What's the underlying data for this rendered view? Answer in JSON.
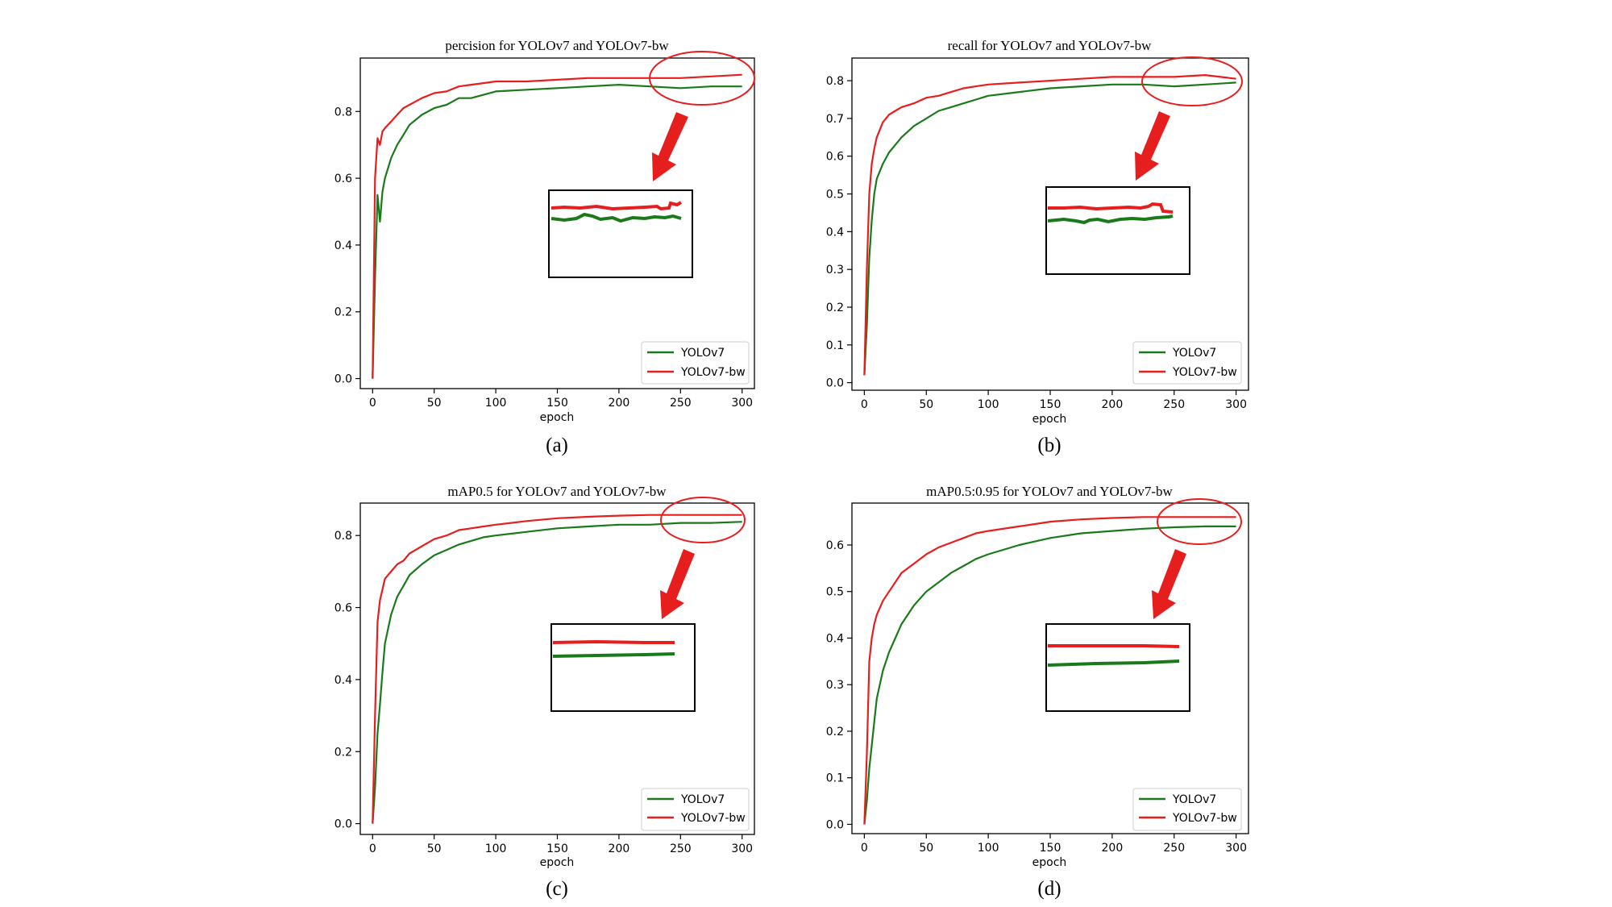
{
  "chart_data": [
    {
      "type": "line",
      "title": "percision for YOLOv7 and YOLOv7-bw",
      "caption": "(a)",
      "xlabel": "epoch",
      "ylabel": "",
      "xlim": [
        -10,
        310
      ],
      "ylim": [
        -0.03,
        0.96
      ],
      "xticks": [
        0,
        50,
        100,
        150,
        200,
        250,
        300
      ],
      "yticks": [
        0.0,
        0.2,
        0.4,
        0.6,
        0.8
      ],
      "xtick_labels": [
        "0",
        "50",
        "100",
        "150",
        "200",
        "250",
        "300"
      ],
      "ytick_labels": [
        "0.0",
        "0.2",
        "0.4",
        "0.6",
        "0.8"
      ],
      "grid": false,
      "legend_position": "lower right",
      "inset": true,
      "series": [
        {
          "name": "YOLOv7",
          "color": "#1a7a1a",
          "x": [
            0,
            2,
            4,
            6,
            8,
            10,
            15,
            20,
            25,
            30,
            40,
            50,
            60,
            70,
            80,
            90,
            100,
            125,
            150,
            175,
            200,
            225,
            250,
            275,
            300
          ],
          "y": [
            0.0,
            0.3,
            0.55,
            0.47,
            0.56,
            0.6,
            0.66,
            0.7,
            0.73,
            0.76,
            0.79,
            0.81,
            0.82,
            0.84,
            0.84,
            0.85,
            0.86,
            0.865,
            0.87,
            0.875,
            0.88,
            0.875,
            0.87,
            0.875,
            0.875
          ]
        },
        {
          "name": "YOLOv7-bw",
          "color": "#e61e1e",
          "x": [
            0,
            2,
            4,
            6,
            8,
            10,
            15,
            20,
            25,
            30,
            40,
            50,
            60,
            70,
            80,
            90,
            100,
            125,
            150,
            175,
            200,
            225,
            250,
            275,
            300
          ],
          "y": [
            0.0,
            0.6,
            0.72,
            0.7,
            0.74,
            0.75,
            0.77,
            0.79,
            0.81,
            0.82,
            0.84,
            0.855,
            0.86,
            0.875,
            0.88,
            0.885,
            0.89,
            0.89,
            0.895,
            0.9,
            0.9,
            0.9,
            0.9,
            0.905,
            0.91
          ]
        }
      ]
    },
    {
      "type": "line",
      "title": "recall for YOLOv7 and YOLOv7-bw",
      "caption": "(b)",
      "xlabel": "epoch",
      "ylabel": "",
      "xlim": [
        -10,
        310
      ],
      "ylim": [
        -0.02,
        0.86
      ],
      "xticks": [
        0,
        50,
        100,
        150,
        200,
        250,
        300
      ],
      "yticks": [
        0.0,
        0.1,
        0.2,
        0.3,
        0.4,
        0.5,
        0.6,
        0.7,
        0.8
      ],
      "xtick_labels": [
        "0",
        "50",
        "100",
        "150",
        "200",
        "250",
        "300"
      ],
      "ytick_labels": [
        "0.0",
        "0.1",
        "0.2",
        "0.3",
        "0.4",
        "0.5",
        "0.6",
        "0.7",
        "0.8"
      ],
      "grid": false,
      "legend_position": "lower right",
      "inset": true,
      "series": [
        {
          "name": "YOLOv7",
          "color": "#1a7a1a",
          "x": [
            0,
            2,
            4,
            6,
            8,
            10,
            15,
            20,
            25,
            30,
            40,
            50,
            60,
            70,
            80,
            90,
            100,
            125,
            150,
            175,
            200,
            225,
            250,
            275,
            300
          ],
          "y": [
            0.02,
            0.15,
            0.33,
            0.43,
            0.5,
            0.54,
            0.58,
            0.61,
            0.63,
            0.65,
            0.68,
            0.7,
            0.72,
            0.73,
            0.74,
            0.75,
            0.76,
            0.77,
            0.78,
            0.785,
            0.79,
            0.79,
            0.785,
            0.79,
            0.795
          ]
        },
        {
          "name": "YOLOv7-bw",
          "color": "#e61e1e",
          "x": [
            0,
            2,
            4,
            6,
            8,
            10,
            15,
            20,
            25,
            30,
            40,
            50,
            60,
            70,
            80,
            90,
            100,
            125,
            150,
            175,
            200,
            225,
            250,
            275,
            300
          ],
          "y": [
            0.02,
            0.3,
            0.5,
            0.58,
            0.62,
            0.65,
            0.69,
            0.71,
            0.72,
            0.73,
            0.74,
            0.755,
            0.76,
            0.77,
            0.78,
            0.785,
            0.79,
            0.795,
            0.8,
            0.805,
            0.81,
            0.81,
            0.81,
            0.815,
            0.805
          ]
        }
      ]
    },
    {
      "type": "line",
      "title": "mAP0.5 for YOLOv7 and YOLOv7-bw",
      "caption": "(c)",
      "xlabel": "epoch",
      "ylabel": "",
      "xlim": [
        -10,
        310
      ],
      "ylim": [
        -0.03,
        0.89
      ],
      "xticks": [
        0,
        50,
        100,
        150,
        200,
        250,
        300
      ],
      "yticks": [
        0.0,
        0.2,
        0.4,
        0.6,
        0.8
      ],
      "xtick_labels": [
        "0",
        "50",
        "100",
        "150",
        "200",
        "250",
        "300"
      ],
      "ytick_labels": [
        "0.0",
        "0.2",
        "0.4",
        "0.6",
        "0.8"
      ],
      "grid": false,
      "legend_position": "lower right",
      "inset": true,
      "series": [
        {
          "name": "YOLOv7",
          "color": "#1a7a1a",
          "x": [
            0,
            2,
            4,
            6,
            8,
            10,
            15,
            20,
            25,
            30,
            40,
            50,
            60,
            70,
            80,
            90,
            100,
            125,
            150,
            175,
            200,
            225,
            250,
            275,
            300
          ],
          "y": [
            0.0,
            0.1,
            0.25,
            0.33,
            0.42,
            0.5,
            0.58,
            0.63,
            0.66,
            0.69,
            0.72,
            0.745,
            0.76,
            0.775,
            0.785,
            0.795,
            0.8,
            0.81,
            0.82,
            0.825,
            0.83,
            0.83,
            0.835,
            0.835,
            0.838
          ]
        },
        {
          "name": "YOLOv7-bw",
          "color": "#e61e1e",
          "x": [
            0,
            2,
            4,
            6,
            8,
            10,
            15,
            20,
            25,
            30,
            40,
            50,
            60,
            70,
            80,
            90,
            100,
            125,
            150,
            175,
            200,
            225,
            250,
            275,
            300
          ],
          "y": [
            0.0,
            0.3,
            0.56,
            0.62,
            0.65,
            0.68,
            0.7,
            0.72,
            0.73,
            0.75,
            0.77,
            0.79,
            0.8,
            0.815,
            0.82,
            0.825,
            0.83,
            0.84,
            0.848,
            0.852,
            0.855,
            0.857,
            0.857,
            0.857,
            0.857
          ]
        }
      ]
    },
    {
      "type": "line",
      "title": "mAP0.5:0.95 for YOLOv7 and YOLOv7-bw",
      "caption": "(d)",
      "xlabel": "epoch",
      "ylabel": "",
      "xlim": [
        -10,
        310
      ],
      "ylim": [
        -0.02,
        0.69
      ],
      "xticks": [
        0,
        50,
        100,
        150,
        200,
        250,
        300
      ],
      "yticks": [
        0.0,
        0.1,
        0.2,
        0.3,
        0.4,
        0.5,
        0.6
      ],
      "xtick_labels": [
        "0",
        "50",
        "100",
        "150",
        "200",
        "250",
        "300"
      ],
      "ytick_labels": [
        "0.0",
        "0.1",
        "0.2",
        "0.3",
        "0.4",
        "0.5",
        "0.6"
      ],
      "grid": false,
      "legend_position": "lower right",
      "inset": true,
      "series": [
        {
          "name": "YOLOv7",
          "color": "#1a7a1a",
          "x": [
            0,
            2,
            4,
            6,
            8,
            10,
            15,
            20,
            25,
            30,
            40,
            50,
            60,
            70,
            80,
            90,
            100,
            125,
            150,
            175,
            200,
            225,
            250,
            275,
            300
          ],
          "y": [
            0.0,
            0.05,
            0.12,
            0.17,
            0.22,
            0.27,
            0.33,
            0.37,
            0.4,
            0.43,
            0.47,
            0.5,
            0.52,
            0.54,
            0.555,
            0.57,
            0.58,
            0.6,
            0.615,
            0.625,
            0.63,
            0.635,
            0.638,
            0.64,
            0.64
          ]
        },
        {
          "name": "YOLOv7-bw",
          "color": "#e61e1e",
          "x": [
            0,
            2,
            4,
            6,
            8,
            10,
            15,
            20,
            25,
            30,
            40,
            50,
            60,
            70,
            80,
            90,
            100,
            125,
            150,
            175,
            200,
            225,
            250,
            275,
            300
          ],
          "y": [
            0.0,
            0.15,
            0.35,
            0.4,
            0.43,
            0.45,
            0.48,
            0.5,
            0.52,
            0.54,
            0.56,
            0.58,
            0.595,
            0.605,
            0.615,
            0.625,
            0.63,
            0.64,
            0.65,
            0.655,
            0.658,
            0.66,
            0.66,
            0.66,
            0.66
          ]
        }
      ]
    }
  ]
}
